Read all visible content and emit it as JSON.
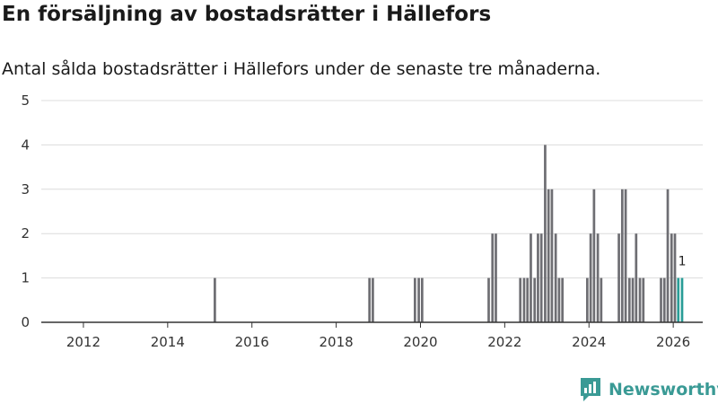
{
  "header": {
    "title": "En försäljning av bostadsrätter i Hällefors",
    "subtitle": "Antal sålda bostadsrätter i Hällefors under de senaste tre månaderna."
  },
  "brand": {
    "name": "Newsworthy",
    "icon": "newsworthy-logo-icon",
    "color": "#3a9a95"
  },
  "chart_data": {
    "type": "bar",
    "title": "En försäljning av bostadsrätter i Hällefors",
    "subtitle": "Antal sålda bostadsrätter i Hällefors under de senaste tre månaderna.",
    "xlabel": "",
    "ylabel": "",
    "xlim": [
      2011.0,
      2026.7
    ],
    "ylim": [
      0,
      5
    ],
    "y_ticks": [
      0,
      1,
      2,
      3,
      4,
      5
    ],
    "x_ticks": [
      2012,
      2014,
      2016,
      2018,
      2020,
      2022,
      2024,
      2026
    ],
    "x_tick_labels": [
      "2012",
      "2014",
      "2016",
      "2018",
      "2020",
      "2022",
      "2024",
      "2026"
    ],
    "grid": true,
    "bar_width_years": 0.0833,
    "colors": {
      "default": "#6e6e73",
      "highlight": "#2a9d97"
    },
    "x": [
      2015.08,
      2018.75,
      2018.83,
      2019.83,
      2019.92,
      2020.0,
      2021.58,
      2021.67,
      2021.75,
      2022.33,
      2022.42,
      2022.5,
      2022.58,
      2022.67,
      2022.75,
      2022.83,
      2022.92,
      2023.0,
      2023.08,
      2023.17,
      2023.25,
      2023.33,
      2023.92,
      2024.0,
      2024.08,
      2024.17,
      2024.25,
      2024.67,
      2024.75,
      2024.83,
      2024.92,
      2025.0,
      2025.08,
      2025.17,
      2025.25,
      2025.67,
      2025.75,
      2025.83,
      2025.92,
      2026.0,
      2026.08,
      2026.17
    ],
    "values": [
      1,
      1,
      1,
      1,
      1,
      1,
      1,
      2,
      2,
      1,
      1,
      1,
      2,
      1,
      2,
      2,
      4,
      3,
      3,
      2,
      1,
      1,
      1,
      2,
      3,
      2,
      1,
      2,
      3,
      3,
      1,
      1,
      2,
      1,
      1,
      1,
      1,
      3,
      2,
      2,
      1,
      1
    ],
    "highlight_last": 2,
    "data_labels": [
      {
        "x": 2026.17,
        "text": "1"
      }
    ]
  }
}
